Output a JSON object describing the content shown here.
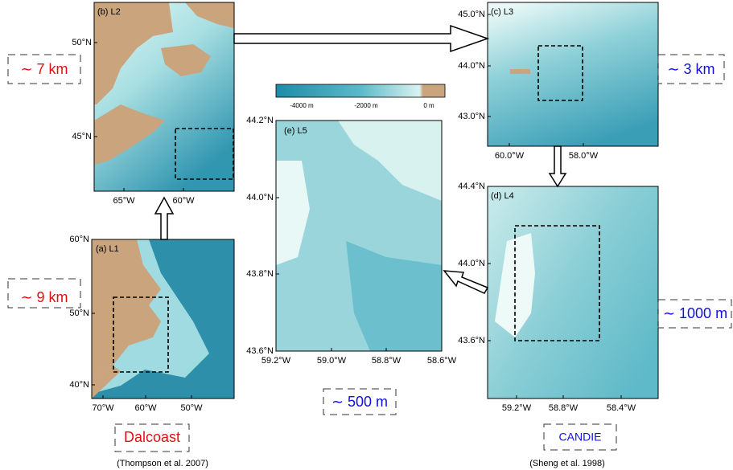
{
  "panels": [
    {
      "label": "(a) L1",
      "lat_ticks": [
        "60°N",
        "50°N",
        "40°N"
      ],
      "lon_ticks": [
        "70°W",
        "60°W",
        "50°W"
      ]
    },
    {
      "label": "(b) L2",
      "lat_ticks": [
        "50°N",
        "45°N"
      ],
      "lon_ticks": [
        "65°W",
        "60°W"
      ]
    },
    {
      "label": "(c) L3",
      "lat_ticks": [
        "45.0°N",
        "44.0°N",
        "43.0°N"
      ],
      "lon_ticks": [
        "60.0°W",
        "58.0°W"
      ]
    },
    {
      "label": "(d) L4",
      "lat_ticks": [
        "44.4°N",
        "44.0°N",
        "43.6°N"
      ],
      "lon_ticks": [
        "59.2°W",
        "58.8°W",
        "58.4°W"
      ]
    },
    {
      "label": "(e) L5",
      "lat_ticks": [
        "44.2°N",
        "44.0°N",
        "43.8°N",
        "43.6°N"
      ],
      "lon_ticks": [
        "59.2°W",
        "59.0°W",
        "58.8°W",
        "58.6°W"
      ]
    }
  ],
  "colorbar": {
    "labels": [
      "-4000 m",
      "-2000 m",
      "0 m"
    ]
  },
  "resolutions": [
    "∼ 9 km",
    "∼ 7 km",
    "∼ 3 km",
    "∼ 1000 m",
    "∼ 500 m"
  ],
  "models": [
    "Dalcoast",
    "CANDIE"
  ],
  "citations": [
    "(Thompson et al. 2007)",
    "(Sheng et al. 1998)"
  ]
}
